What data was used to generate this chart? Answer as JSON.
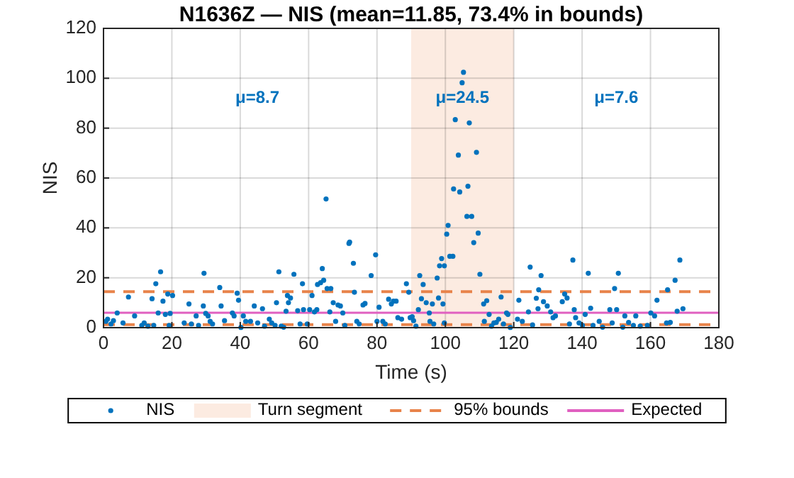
{
  "chart_data": {
    "type": "scatter",
    "title": "N1636Z — NIS (mean=11.85, 73.4% in bounds)",
    "xlabel": "Time (s)",
    "ylabel": "NIS",
    "xlim": [
      0,
      180
    ],
    "xticks": [
      0,
      20,
      40,
      60,
      80,
      100,
      120,
      140,
      160,
      180
    ],
    "ylim": [
      0,
      120
    ],
    "yticks": [
      0,
      20,
      40,
      60,
      80,
      100,
      120
    ],
    "grid": true,
    "legend": "bottom",
    "marker": "circle",
    "series": [
      {
        "name": "NIS",
        "color": "#0072bd",
        "x": [
          0.7,
          1.2,
          2.2,
          2.9,
          4.0,
          5.7,
          7.3,
          9.1,
          11.2,
          11.9,
          13.0,
          14.2,
          14.7,
          15.3,
          16.0,
          16.7,
          17.4,
          18.1,
          18.8,
          19.2,
          19.5,
          20.2,
          23.6,
          25.0,
          25.7,
          27.1,
          27.8,
          29.2,
          29.4,
          29.9,
          30.6,
          31.2,
          31.9,
          34.0,
          34.4,
          35.4,
          37.7,
          38.2,
          39.1,
          39.5,
          40.2,
          40.9,
          41.6,
          43.0,
          44.1,
          45.1,
          46.5,
          47.1,
          48.5,
          49.2,
          50.2,
          50.6,
          51.3,
          52.0,
          52.7,
          53.4,
          53.8,
          54.1,
          54.7,
          55.7,
          56.8,
          57.5,
          58.2,
          58.5,
          59.6,
          60.3,
          61.0,
          61.7,
          62.4,
          62.6,
          63.5,
          64.0,
          64.4,
          65.1,
          65.4,
          66.5,
          66.2,
          67.2,
          67.9,
          68.6,
          69.3,
          70.0,
          70.6,
          71.8,
          72.0,
          73.1,
          73.4,
          74.1,
          74.8,
          75.9,
          76.5,
          78.3,
          79.6,
          80.0,
          80.6,
          81.7,
          82.4,
          83.4,
          84.2,
          84.8,
          85.6,
          86.1,
          87.2,
          88.6,
          89.3,
          89.7,
          90.3,
          90.7,
          91.4,
          92.1,
          92.5,
          93.0,
          93.5,
          94.4,
          95.3,
          95.5,
          96.2,
          96.6,
          97.6,
          98.0,
          98.3,
          98.9,
          99.3,
          99.7,
          99.7,
          100.4,
          100.8,
          101.3,
          102.2,
          102.4,
          102.9,
          103.8,
          104.2,
          104.9,
          105.3,
          106.3,
          106.6,
          107.0,
          107.7,
          108.3,
          109.1,
          109.6,
          110.1,
          111.2,
          111.4,
          112.1,
          112.8,
          113.5,
          114.2,
          114.9,
          115.6,
          116.3,
          117.0,
          117.9,
          118.3,
          119.0,
          121.1,
          121.5,
          122.5,
          124.3,
          124.8,
          125.5,
          126.6,
          127.1,
          127.3,
          128.0,
          128.7,
          129.8,
          130.8,
          131.5,
          132.2,
          134.2,
          134.9,
          135.6,
          136.3,
          137.3,
          137.7,
          138.1,
          139.1,
          140.1,
          140.9,
          141.8,
          142.5,
          143.2,
          145.0,
          146.0,
          148.1,
          148.8,
          149.5,
          150.1,
          150.6,
          151.9,
          152.5,
          153.6,
          155.0,
          155.7,
          157.0,
          159.1,
          160.1,
          161.2,
          161.9,
          164.7,
          165.0,
          165.8,
          167.2,
          167.8,
          168.6,
          169.5
        ],
        "values": [
          2.5,
          3.4,
          1.5,
          2.8,
          5.9,
          1.9,
          12.3,
          4.7,
          0.9,
          1.9,
          0.6,
          11.6,
          0.9,
          17.6,
          5.9,
          22.4,
          10.6,
          5.3,
          13.5,
          0.9,
          5.7,
          12.9,
          1.9,
          9.5,
          1.5,
          4.7,
          0.9,
          8.7,
          21.8,
          5.7,
          4.7,
          2.5,
          1.5,
          16.1,
          8.7,
          2.8,
          5.9,
          4.7,
          13.8,
          11.0,
          0.1,
          4.7,
          2.5,
          2.5,
          8.7,
          1.9,
          7.6,
          0.6,
          3.4,
          1.9,
          0.9,
          10.0,
          22.4,
          0.6,
          0.2,
          6.6,
          12.9,
          10.0,
          11.9,
          21.4,
          6.8,
          1.5,
          17.6,
          7.2,
          1.5,
          7.2,
          12.9,
          6.3,
          7.2,
          17.3,
          18.0,
          23.7,
          19.0,
          51.6,
          15.7,
          15.7,
          6.3,
          10.0,
          2.5,
          9.1,
          8.7,
          5.9,
          0.9,
          33.8,
          34.3,
          25.8,
          14.2,
          2.5,
          1.5,
          9.1,
          9.7,
          20.9,
          29.2,
          2.5,
          8.2,
          2.5,
          1.5,
          11.4,
          9.5,
          10.6,
          10.6,
          4.0,
          3.4,
          17.6,
          14.2,
          4.0,
          4.4,
          2.8,
          0.6,
          7.2,
          20.9,
          11.6,
          17.3,
          10.0,
          5.9,
          2.5,
          9.5,
          1.5,
          19.9,
          11.9,
          24.8,
          27.7,
          9.5,
          1.9,
          24.8,
          37.5,
          41.0,
          28.6,
          28.6,
          55.6,
          83.4,
          69.2,
          54.4,
          98.2,
          102.4,
          44.6,
          56.7,
          82.1,
          44.6,
          34.1,
          70.3,
          37.9,
          21.4,
          9.5,
          2.5,
          10.8,
          5.3,
          0.6,
          1.9,
          2.1,
          3.4,
          12.3,
          1.5,
          5.9,
          5.3,
          0.1,
          3.4,
          11.0,
          2.5,
          6.3,
          24.3,
          1.1,
          11.8,
          7.6,
          15.2,
          20.9,
          10.4,
          8.7,
          6.3,
          4.0,
          4.7,
          10.4,
          13.5,
          11.9,
          1.5,
          27.1,
          7.2,
          4.0,
          1.9,
          0.9,
          5.3,
          21.8,
          7.8,
          0.9,
          2.5,
          0.2,
          7.2,
          1.9,
          15.7,
          7.2,
          21.8,
          0.2,
          4.7,
          2.1,
          0.9,
          4.7,
          0.6,
          0.9,
          5.9,
          4.7,
          11.0,
          1.9,
          15.2,
          2.1,
          19.0,
          6.6,
          27.1,
          7.6
        ]
      }
    ],
    "bands": [
      {
        "axis": "x",
        "from": 90,
        "to": 120,
        "label": "Turn segment",
        "color": "#fcebe1"
      }
    ],
    "ref_lines": [
      {
        "axis": "y",
        "value": 14.45,
        "label": "95% bounds",
        "color": "#e8834a",
        "line_style": "dashed"
      },
      {
        "axis": "y",
        "value": 1.24,
        "color": "#e8834a",
        "line_style": "dashed"
      },
      {
        "axis": "y",
        "value": 6,
        "label": "Expected",
        "color": "#e060c0",
        "line_style": "solid"
      }
    ],
    "annotations": [
      "μ=8.7",
      "μ=24.5",
      "μ=7.6"
    ]
  }
}
